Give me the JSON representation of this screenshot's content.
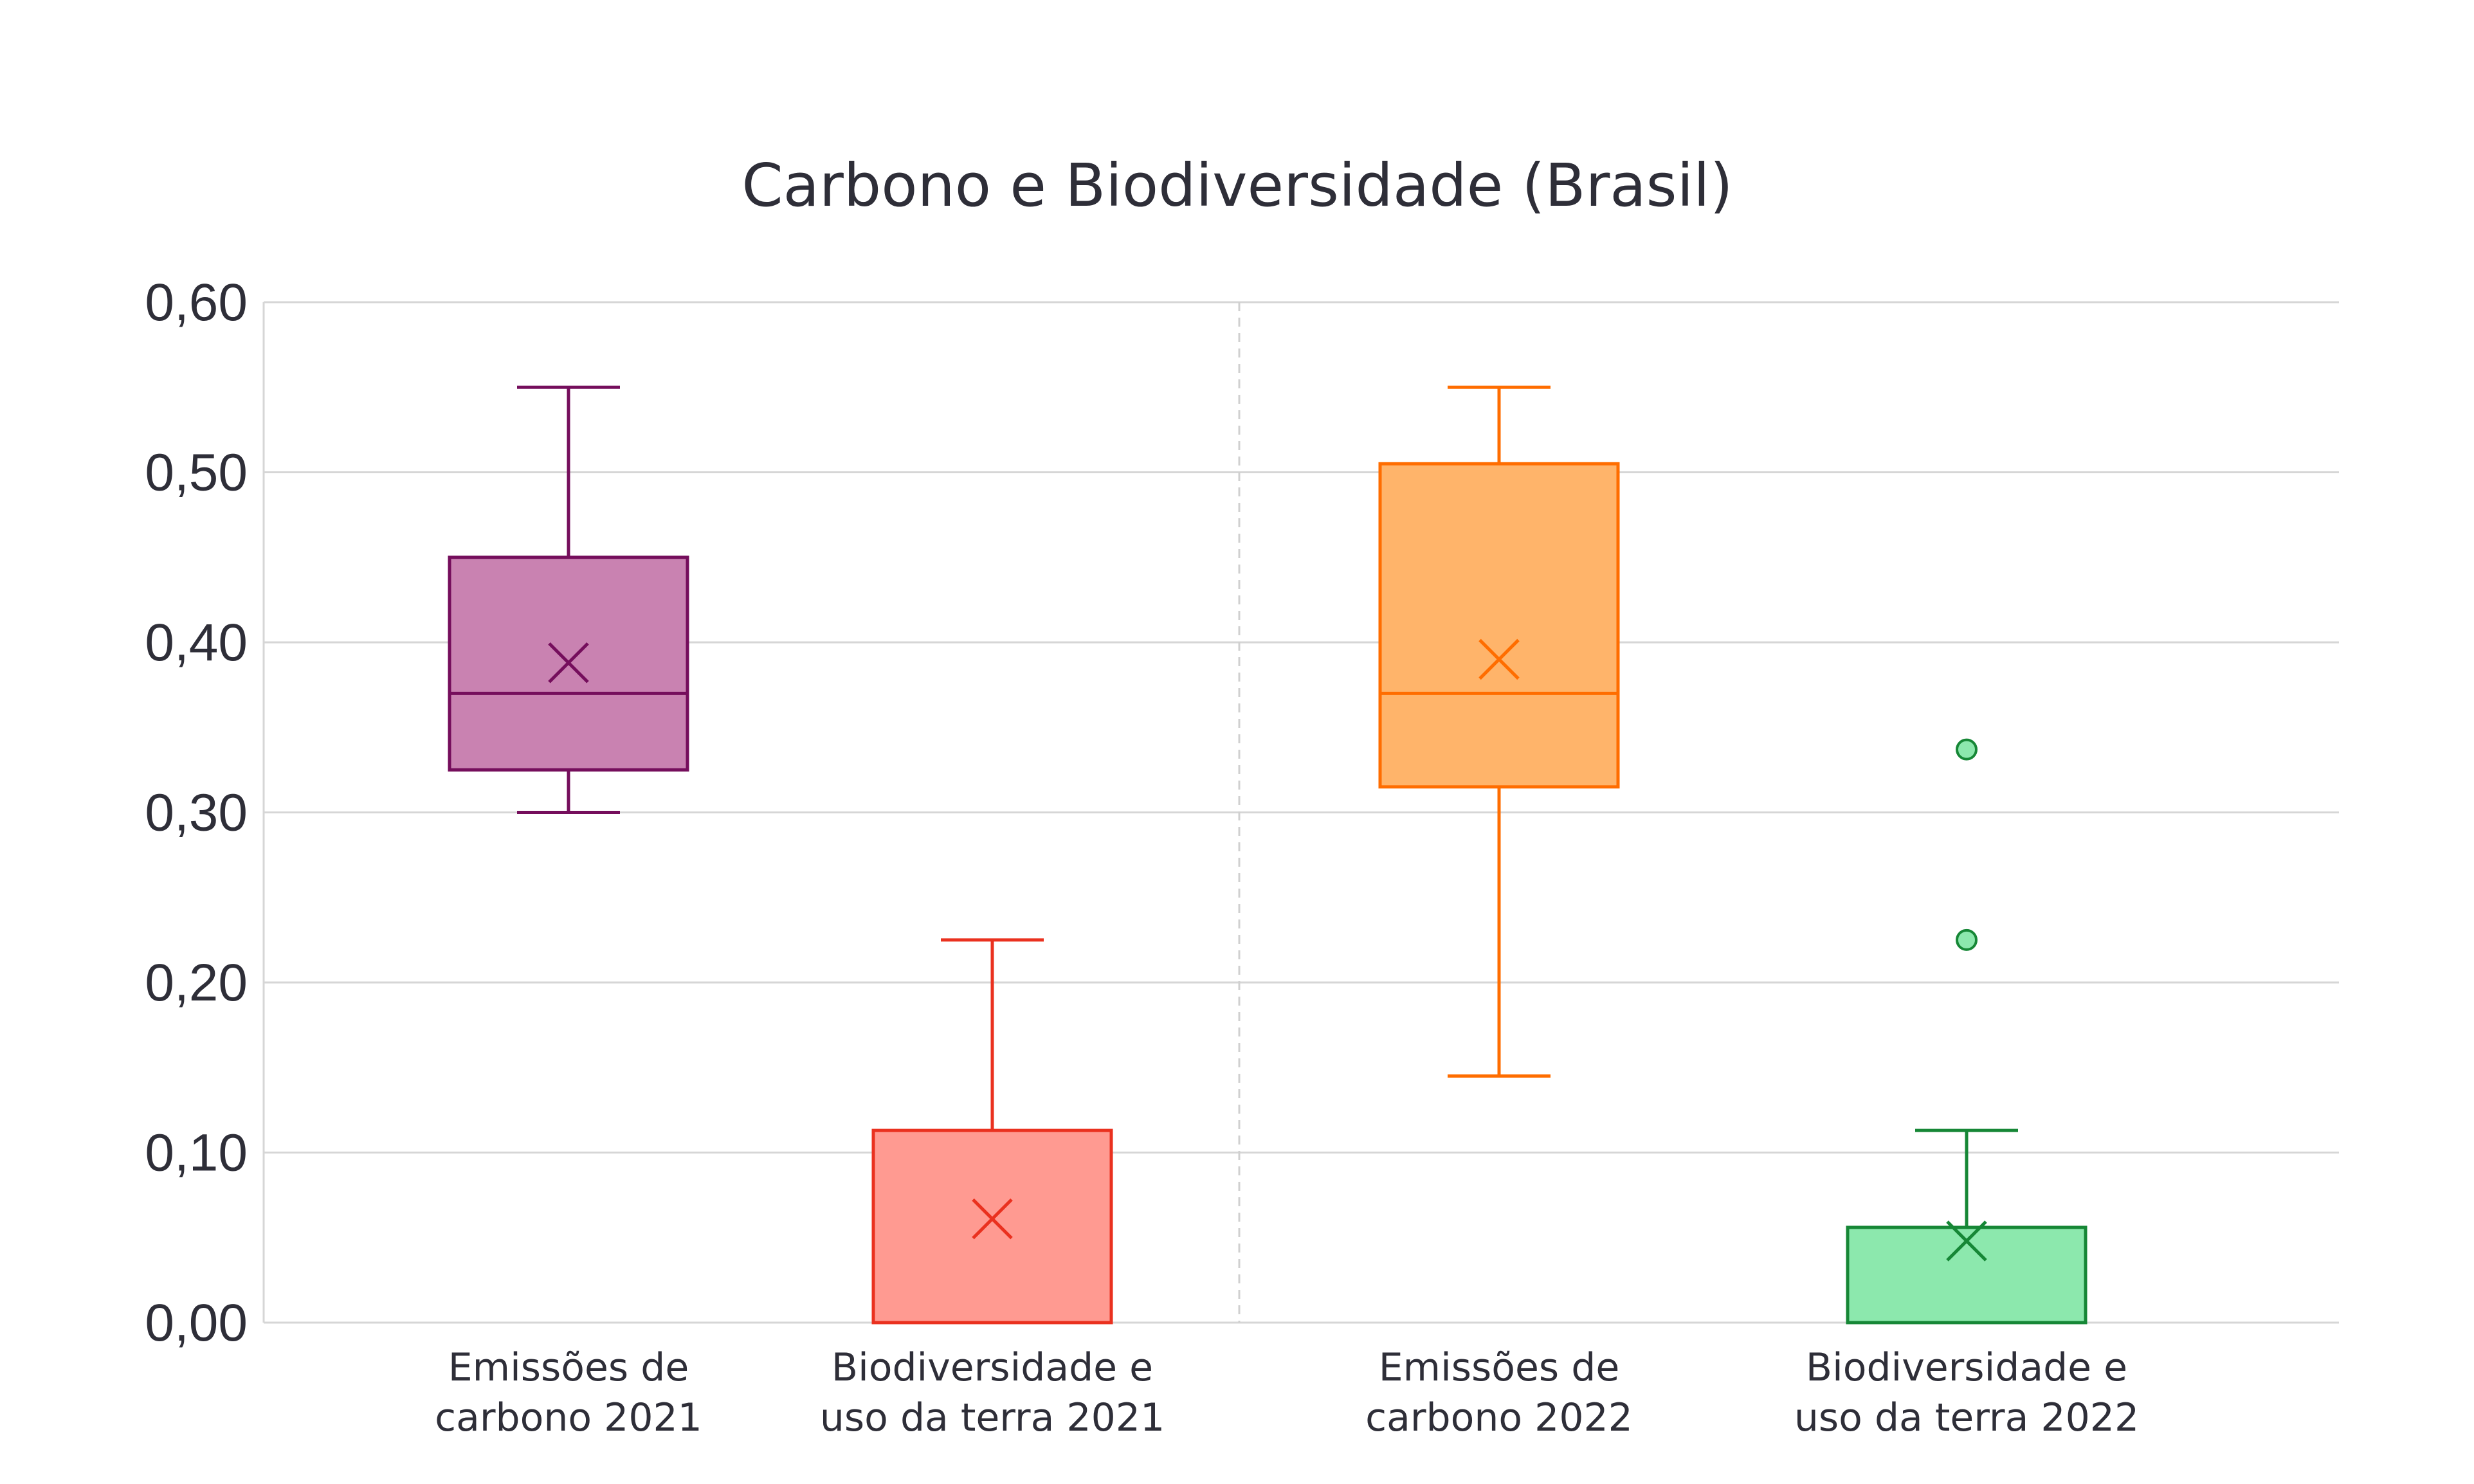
{
  "chart_data": {
    "type": "box",
    "title": "Carbono e Biodiversidade (Brasil)",
    "xlabel": "",
    "ylabel": "",
    "ylim": [
      0,
      0.6
    ],
    "yticks": [
      0,
      0.1,
      0.2,
      0.3,
      0.4,
      0.5,
      0.6
    ],
    "ytick_labels": [
      "0,00",
      "0,10",
      "0,20",
      "0,30",
      "0,40",
      "0,50",
      "0,60"
    ],
    "grid": true,
    "separator_between_years": true,
    "series": [
      {
        "name": "Emissões de carbono 2021",
        "label_lines": [
          "Emissões de",
          "carbono 2021"
        ],
        "color_fill": "#c982b1",
        "color_stroke": "#750e5c",
        "min": 0.3,
        "q1": 0.325,
        "median": 0.37,
        "q3": 0.45,
        "max": 0.55,
        "mean": 0.388,
        "outliers": []
      },
      {
        "name": "Biodiversidade e uso da terra 2021",
        "label_lines": [
          "Biodiversidade e",
          "uso da terra 2021"
        ],
        "color_fill": "#ff9a91",
        "color_stroke": "#ea311f",
        "min": 0.0,
        "q1": 0.0,
        "median": 0.0,
        "q3": 0.113,
        "max": 0.225,
        "mean": 0.061,
        "outliers": []
      },
      {
        "name": "Emissões de carbono 2022",
        "label_lines": [
          "Emissões de",
          "carbono 2022"
        ],
        "color_fill": "#ffb46a",
        "color_stroke": "#ff6d00",
        "min": 0.145,
        "q1": 0.315,
        "median": 0.37,
        "q3": 0.505,
        "max": 0.55,
        "mean": 0.39,
        "outliers": []
      },
      {
        "name": "Biodiversidade e uso da terra 2022",
        "label_lines": [
          "Biodiversidade e",
          "uso da terra 2022"
        ],
        "color_fill": "#8ce8ad",
        "color_stroke": "#168736",
        "min": 0.0,
        "q1": 0.0,
        "median": 0.0,
        "q3": 0.056,
        "max": 0.113,
        "mean": 0.048,
        "outliers": [
          0.225,
          0.337
        ]
      }
    ]
  }
}
